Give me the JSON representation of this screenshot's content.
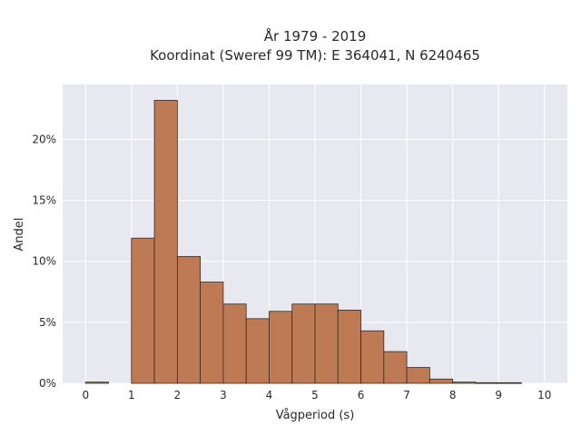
{
  "chart_data": {
    "type": "bar",
    "title_line1": "År 1979 - 2019",
    "title_line2": "Koordinat (Sweref 99 TM): E 364041, N 6240465",
    "xlabel": "Vågperiod (s)",
    "ylabel": "Andel",
    "bin_width": 0.5,
    "bins": [
      {
        "x0": 0.0,
        "value": 0.1
      },
      {
        "x0": 0.5,
        "value": 0.0
      },
      {
        "x0": 1.0,
        "value": 11.9
      },
      {
        "x0": 1.5,
        "value": 23.2
      },
      {
        "x0": 2.0,
        "value": 10.4
      },
      {
        "x0": 2.5,
        "value": 8.3
      },
      {
        "x0": 3.0,
        "value": 6.5
      },
      {
        "x0": 3.5,
        "value": 5.3
      },
      {
        "x0": 4.0,
        "value": 5.9
      },
      {
        "x0": 4.5,
        "value": 6.5
      },
      {
        "x0": 5.0,
        "value": 6.5
      },
      {
        "x0": 5.5,
        "value": 6.0
      },
      {
        "x0": 6.0,
        "value": 4.3
      },
      {
        "x0": 6.5,
        "value": 2.6
      },
      {
        "x0": 7.0,
        "value": 1.3
      },
      {
        "x0": 7.5,
        "value": 0.35
      },
      {
        "x0": 8.0,
        "value": 0.1
      },
      {
        "x0": 8.5,
        "value": 0.05
      },
      {
        "x0": 9.0,
        "value": 0.05
      },
      {
        "x0": 9.5,
        "value": 0.0
      }
    ],
    "x_ticks": [
      0,
      1,
      2,
      3,
      4,
      5,
      6,
      7,
      8,
      9,
      10
    ],
    "x_tick_labels": [
      "0",
      "1",
      "2",
      "3",
      "4",
      "5",
      "6",
      "7",
      "8",
      "9",
      "10"
    ],
    "y_ticks": [
      0,
      5,
      10,
      15,
      20
    ],
    "y_tick_labels": [
      "0%",
      "5%",
      "10%",
      "15%",
      "20%"
    ],
    "xlim": [
      -0.5,
      10.5
    ],
    "ylim": [
      0,
      24.5
    ],
    "grid": true,
    "colors": {
      "bar_fill": "#bd7a55",
      "bar_stroke": "#3a2a20",
      "plot_bg": "#e8e8f0",
      "grid": "#ffffff"
    }
  }
}
